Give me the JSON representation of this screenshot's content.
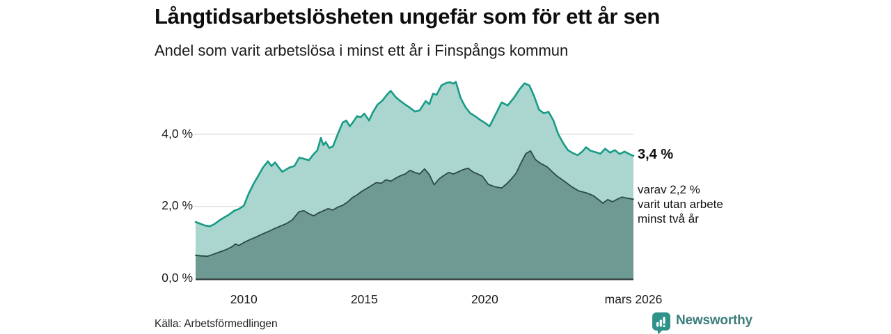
{
  "header": {
    "title": "Långtidsarbetslösheten ungefär som för ett år sen",
    "subtitle": "Andel som varit arbetslösa i minst ett år i Finspångs kommun"
  },
  "footer": {
    "source_label": "Källa: Arbetsförmedlingen",
    "brand_name": "Newsworthy"
  },
  "colors": {
    "accent_teal": "#189b86",
    "light_fill": "#abd6d0",
    "dark_fill": "#6f9a93",
    "dark_line": "#2b4a45",
    "grid": "#d9d9d9",
    "axis": "#2e3a38",
    "brand_teal": "#2f938a",
    "brand_text": "#3b7d79"
  },
  "chart_data": {
    "type": "area",
    "title": "Långtidsarbetslösheten ungefär som för ett år sen",
    "subtitle": "Andel som varit arbetslösa i minst ett år i Finspångs kommun",
    "unit": "%",
    "grid": "on",
    "legend": "none",
    "x_domain": [
      2008.0,
      2026.17
    ],
    "ylim": [
      0,
      5.8
    ],
    "grid_color": "#d9d9d9",
    "axis_color": "#2e3a38",
    "y_ticks": [
      {
        "value": 0,
        "label": "0,0 %"
      },
      {
        "value": 2,
        "label": "2,0 %"
      },
      {
        "value": 4,
        "label": "4,0 %"
      }
    ],
    "x_ticks": [
      {
        "t": 2010,
        "label": "2010"
      },
      {
        "t": 2015,
        "label": "2015"
      },
      {
        "t": 2020,
        "label": "2020"
      },
      {
        "t": 2026.17,
        "label": "mars 2026"
      }
    ],
    "annotations": [
      {
        "series": 0,
        "at_value": 3.4,
        "text": "3,4 %",
        "bold": true
      },
      {
        "series": 1,
        "at_value": 2.2,
        "lines": [
          "varav 2,2 %",
          "varit utan arbete",
          "minst två år"
        ]
      }
    ],
    "series": [
      {
        "name": "Arbetslösa minst ett år",
        "line_color": "#189b86",
        "fill_color": "#abd6d0",
        "line_width": 2.6,
        "end_value_label": "3,4 %",
        "points": [
          [
            2008.0,
            1.57
          ],
          [
            2008.2,
            1.52
          ],
          [
            2008.4,
            1.47
          ],
          [
            2008.6,
            1.45
          ],
          [
            2008.8,
            1.52
          ],
          [
            2009.0,
            1.62
          ],
          [
            2009.2,
            1.7
          ],
          [
            2009.4,
            1.78
          ],
          [
            2009.6,
            1.88
          ],
          [
            2009.8,
            1.93
          ],
          [
            2010.0,
            2.02
          ],
          [
            2010.2,
            2.35
          ],
          [
            2010.4,
            2.62
          ],
          [
            2010.6,
            2.85
          ],
          [
            2010.8,
            3.08
          ],
          [
            2011.0,
            3.25
          ],
          [
            2011.15,
            3.12
          ],
          [
            2011.3,
            3.22
          ],
          [
            2011.45,
            3.08
          ],
          [
            2011.6,
            2.96
          ],
          [
            2011.75,
            3.02
          ],
          [
            2011.9,
            3.08
          ],
          [
            2012.1,
            3.12
          ],
          [
            2012.3,
            3.35
          ],
          [
            2012.5,
            3.32
          ],
          [
            2012.7,
            3.28
          ],
          [
            2012.9,
            3.45
          ],
          [
            2013.05,
            3.55
          ],
          [
            2013.2,
            3.9
          ],
          [
            2013.3,
            3.7
          ],
          [
            2013.4,
            3.78
          ],
          [
            2013.55,
            3.62
          ],
          [
            2013.7,
            3.66
          ],
          [
            2013.9,
            4.0
          ],
          [
            2014.1,
            4.32
          ],
          [
            2014.25,
            4.38
          ],
          [
            2014.4,
            4.22
          ],
          [
            2014.55,
            4.35
          ],
          [
            2014.7,
            4.5
          ],
          [
            2014.85,
            4.47
          ],
          [
            2015.0,
            4.57
          ],
          [
            2015.2,
            4.38
          ],
          [
            2015.35,
            4.6
          ],
          [
            2015.55,
            4.82
          ],
          [
            2015.75,
            4.93
          ],
          [
            2015.95,
            5.1
          ],
          [
            2016.1,
            5.2
          ],
          [
            2016.3,
            5.03
          ],
          [
            2016.5,
            4.92
          ],
          [
            2016.7,
            4.82
          ],
          [
            2016.9,
            4.73
          ],
          [
            2017.1,
            4.63
          ],
          [
            2017.3,
            4.66
          ],
          [
            2017.55,
            4.92
          ],
          [
            2017.7,
            4.83
          ],
          [
            2017.85,
            5.12
          ],
          [
            2018.0,
            5.09
          ],
          [
            2018.2,
            5.35
          ],
          [
            2018.4,
            5.42
          ],
          [
            2018.55,
            5.44
          ],
          [
            2018.7,
            5.4
          ],
          [
            2018.8,
            5.45
          ],
          [
            2019.0,
            5.0
          ],
          [
            2019.2,
            4.75
          ],
          [
            2019.4,
            4.58
          ],
          [
            2019.6,
            4.5
          ],
          [
            2019.8,
            4.4
          ],
          [
            2020.0,
            4.32
          ],
          [
            2020.2,
            4.22
          ],
          [
            2020.45,
            4.55
          ],
          [
            2020.7,
            4.88
          ],
          [
            2020.95,
            4.8
          ],
          [
            2021.2,
            5.0
          ],
          [
            2021.45,
            5.25
          ],
          [
            2021.65,
            5.41
          ],
          [
            2021.85,
            5.35
          ],
          [
            2022.05,
            5.05
          ],
          [
            2022.25,
            4.68
          ],
          [
            2022.45,
            4.58
          ],
          [
            2022.65,
            4.62
          ],
          [
            2022.85,
            4.38
          ],
          [
            2023.05,
            4.0
          ],
          [
            2023.25,
            3.76
          ],
          [
            2023.45,
            3.56
          ],
          [
            2023.65,
            3.48
          ],
          [
            2023.85,
            3.42
          ],
          [
            2024.05,
            3.52
          ],
          [
            2024.2,
            3.64
          ],
          [
            2024.4,
            3.54
          ],
          [
            2024.6,
            3.5
          ],
          [
            2024.8,
            3.46
          ],
          [
            2025.0,
            3.6
          ],
          [
            2025.2,
            3.49
          ],
          [
            2025.4,
            3.56
          ],
          [
            2025.6,
            3.45
          ],
          [
            2025.8,
            3.52
          ],
          [
            2026.0,
            3.45
          ],
          [
            2026.17,
            3.4
          ]
        ]
      },
      {
        "name": "Varav utan arbete minst två år",
        "line_color": "#2b4a45",
        "fill_color": "#6f9a93",
        "line_width": 1.8,
        "end_value_label": "2,2 %",
        "points": [
          [
            2008.0,
            0.65
          ],
          [
            2008.25,
            0.63
          ],
          [
            2008.5,
            0.62
          ],
          [
            2008.75,
            0.68
          ],
          [
            2009.0,
            0.74
          ],
          [
            2009.25,
            0.8
          ],
          [
            2009.5,
            0.88
          ],
          [
            2009.65,
            0.96
          ],
          [
            2009.8,
            0.92
          ],
          [
            2010.0,
            1.0
          ],
          [
            2010.25,
            1.08
          ],
          [
            2010.5,
            1.15
          ],
          [
            2010.75,
            1.23
          ],
          [
            2011.0,
            1.3
          ],
          [
            2011.25,
            1.38
          ],
          [
            2011.5,
            1.45
          ],
          [
            2011.75,
            1.52
          ],
          [
            2012.0,
            1.62
          ],
          [
            2012.15,
            1.74
          ],
          [
            2012.3,
            1.86
          ],
          [
            2012.5,
            1.88
          ],
          [
            2012.7,
            1.8
          ],
          [
            2012.9,
            1.74
          ],
          [
            2013.1,
            1.82
          ],
          [
            2013.3,
            1.88
          ],
          [
            2013.5,
            1.94
          ],
          [
            2013.7,
            1.9
          ],
          [
            2013.9,
            1.98
          ],
          [
            2014.1,
            2.03
          ],
          [
            2014.3,
            2.12
          ],
          [
            2014.5,
            2.24
          ],
          [
            2014.7,
            2.32
          ],
          [
            2014.9,
            2.42
          ],
          [
            2015.1,
            2.5
          ],
          [
            2015.3,
            2.58
          ],
          [
            2015.5,
            2.66
          ],
          [
            2015.7,
            2.64
          ],
          [
            2015.9,
            2.74
          ],
          [
            2016.1,
            2.7
          ],
          [
            2016.3,
            2.78
          ],
          [
            2016.5,
            2.85
          ],
          [
            2016.7,
            2.9
          ],
          [
            2016.9,
            3.0
          ],
          [
            2017.1,
            2.94
          ],
          [
            2017.3,
            2.9
          ],
          [
            2017.5,
            3.04
          ],
          [
            2017.7,
            2.88
          ],
          [
            2017.9,
            2.6
          ],
          [
            2018.1,
            2.76
          ],
          [
            2018.3,
            2.86
          ],
          [
            2018.5,
            2.94
          ],
          [
            2018.7,
            2.9
          ],
          [
            2018.9,
            2.96
          ],
          [
            2019.1,
            3.02
          ],
          [
            2019.3,
            3.06
          ],
          [
            2019.5,
            2.96
          ],
          [
            2019.7,
            2.9
          ],
          [
            2019.9,
            2.84
          ],
          [
            2020.15,
            2.61
          ],
          [
            2020.4,
            2.55
          ],
          [
            2020.7,
            2.51
          ],
          [
            2020.9,
            2.62
          ],
          [
            2021.1,
            2.76
          ],
          [
            2021.3,
            2.92
          ],
          [
            2021.5,
            3.2
          ],
          [
            2021.7,
            3.46
          ],
          [
            2021.9,
            3.54
          ],
          [
            2022.1,
            3.3
          ],
          [
            2022.3,
            3.2
          ],
          [
            2022.6,
            3.09
          ],
          [
            2022.8,
            2.96
          ],
          [
            2023.0,
            2.84
          ],
          [
            2023.3,
            2.7
          ],
          [
            2023.6,
            2.55
          ],
          [
            2023.9,
            2.43
          ],
          [
            2024.2,
            2.38
          ],
          [
            2024.5,
            2.3
          ],
          [
            2024.7,
            2.2
          ],
          [
            2024.9,
            2.09
          ],
          [
            2025.1,
            2.19
          ],
          [
            2025.3,
            2.13
          ],
          [
            2025.5,
            2.2
          ],
          [
            2025.7,
            2.26
          ],
          [
            2025.9,
            2.23
          ],
          [
            2026.17,
            2.2
          ]
        ]
      }
    ]
  }
}
